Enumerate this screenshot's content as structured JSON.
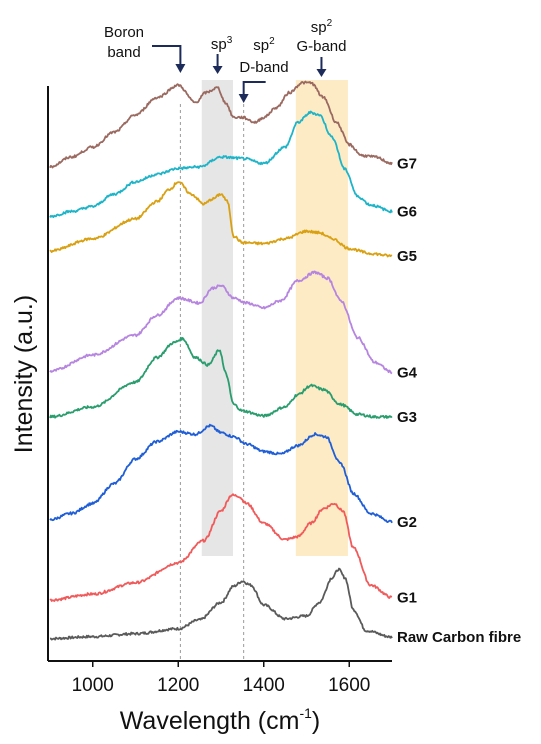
{
  "chart_data": {
    "type": "line",
    "xlabel": "Wavelength (cm",
    "xlabel_sup": "-1",
    "xlabel_end": ")",
    "ylabel": "Intensity (a.u.)",
    "xlim": [
      900,
      1700
    ],
    "xticks": [
      1000,
      1200,
      1400,
      1600
    ],
    "yticks_shown": false,
    "grid": false,
    "shaded_regions": [
      {
        "from": 1255,
        "to": 1328,
        "color": "#e6e6e6"
      },
      {
        "from": 1475,
        "to": 1597,
        "color": "#fdebc6"
      }
    ],
    "reference_lines": [
      1205,
      1353
    ],
    "annotations": [
      {
        "lines": [
          "Boron",
          "band"
        ],
        "x": 1205
      },
      {
        "lines": [
          "sp"
        ],
        "sup": "3",
        "x": 1292
      },
      {
        "lines": [
          "sp",
          "D-band"
        ],
        "sup": "2",
        "x": 1353
      },
      {
        "lines": [
          "sp",
          "G-band"
        ],
        "sup": "2",
        "x": 1535
      }
    ],
    "series": [
      {
        "name": "Raw Carbon fibre",
        "color": "#5a5a5a",
        "x": [
          900,
          1000,
          1100,
          1200,
          1250,
          1300,
          1330,
          1350,
          1370,
          1400,
          1450,
          1500,
          1530,
          1560,
          1575,
          1590,
          1610,
          1640,
          1700
        ],
        "y": [
          0.22,
          0.26,
          0.32,
          0.42,
          0.6,
          0.95,
          1.28,
          1.38,
          1.3,
          0.9,
          0.62,
          0.68,
          0.95,
          1.45,
          1.62,
          1.45,
          0.8,
          0.38,
          0.25
        ]
      },
      {
        "name": "G1",
        "color": "#f05a5a",
        "x": [
          900,
          1000,
          1100,
          1200,
          1260,
          1300,
          1325,
          1340,
          1360,
          1400,
          1450,
          1480,
          1510,
          1540,
          1565,
          1585,
          1610,
          1650,
          1700
        ],
        "y": [
          1.0,
          1.12,
          1.35,
          1.75,
          2.2,
          2.8,
          3.12,
          3.1,
          2.95,
          2.55,
          2.22,
          2.28,
          2.55,
          2.85,
          2.95,
          2.8,
          2.05,
          1.3,
          1.05
        ]
      },
      {
        "name": "G2",
        "color": "#1f5ed6",
        "x": [
          900,
          950,
          1000,
          1050,
          1100,
          1150,
          1200,
          1240,
          1275,
          1300,
          1330,
          1360,
          1400,
          1440,
          1480,
          1520,
          1545,
          1580,
          1610,
          1650,
          1700
        ],
        "y": [
          2.62,
          2.75,
          2.95,
          3.35,
          3.85,
          4.2,
          4.4,
          4.35,
          4.52,
          4.38,
          4.3,
          4.15,
          4.0,
          3.95,
          4.12,
          4.35,
          4.3,
          3.75,
          3.15,
          2.75,
          2.58
        ]
      },
      {
        "name": "G3",
        "color": "#2a9d6e",
        "x": [
          900,
          1000,
          1100,
          1150,
          1190,
          1210,
          1240,
          1270,
          1297,
          1310,
          1330,
          1350,
          1400,
          1450,
          1480,
          1510,
          1540,
          1580,
          1620,
          1660,
          1700
        ],
        "y": [
          4.7,
          4.9,
          5.4,
          5.9,
          6.2,
          6.28,
          5.9,
          5.75,
          6.05,
          5.6,
          4.95,
          4.82,
          4.72,
          4.9,
          5.15,
          5.33,
          5.25,
          4.95,
          4.75,
          4.7,
          4.7
        ]
      },
      {
        "name": "G4",
        "color": "#b685e0",
        "x": [
          900,
          1000,
          1100,
          1150,
          1200,
          1250,
          1280,
          1300,
          1330,
          1360,
          1400,
          1440,
          1480,
          1520,
          1550,
          1580,
          1620,
          1660,
          1700
        ],
        "y": [
          5.62,
          5.95,
          6.35,
          6.75,
          7.1,
          7.0,
          7.3,
          7.35,
          7.1,
          7.0,
          6.9,
          7.05,
          7.45,
          7.62,
          7.5,
          7.05,
          6.3,
          5.8,
          5.6
        ]
      },
      {
        "name": "G5",
        "color": "#d9a012",
        "x": [
          900,
          1000,
          1100,
          1150,
          1180,
          1200,
          1230,
          1260,
          1280,
          1300,
          1315,
          1330,
          1350,
          1400,
          1450,
          1500,
          1530,
          1560,
          1600,
          1650,
          1700
        ],
        "y": [
          8.05,
          8.3,
          8.7,
          9.05,
          9.3,
          9.45,
          9.2,
          9.0,
          9.1,
          9.2,
          9.05,
          8.35,
          8.22,
          8.2,
          8.3,
          8.45,
          8.42,
          8.3,
          8.1,
          8.0,
          7.95
        ]
      },
      {
        "name": "G6",
        "color": "#1eb4c8",
        "x": [
          900,
          950,
          1000,
          1050,
          1100,
          1150,
          1200,
          1250,
          1300,
          1350,
          1400,
          1450,
          1480,
          1510,
          1530,
          1560,
          1590,
          1620,
          1650,
          1700
        ],
        "y": [
          8.75,
          8.85,
          8.95,
          9.2,
          9.45,
          9.6,
          9.72,
          9.75,
          9.95,
          9.92,
          9.82,
          10.15,
          10.65,
          10.85,
          10.8,
          10.35,
          9.7,
          9.15,
          8.98,
          8.85
        ]
      },
      {
        "name": "G7",
        "color": "#9a6a60",
        "x": [
          900,
          950,
          1000,
          1050,
          1100,
          1150,
          1200,
          1240,
          1265,
          1292,
          1310,
          1330,
          1350,
          1380,
          1400,
          1430,
          1460,
          1490,
          1510,
          1540,
          1570,
          1600,
          1630,
          1660,
          1700
        ],
        "y": [
          9.75,
          9.95,
          10.15,
          10.45,
          10.8,
          11.15,
          11.4,
          11.05,
          11.25,
          11.35,
          11.05,
          10.75,
          10.75,
          10.65,
          10.75,
          10.95,
          11.25,
          11.45,
          11.45,
          11.15,
          10.65,
          10.2,
          9.98,
          9.95,
          9.82
        ]
      }
    ]
  }
}
